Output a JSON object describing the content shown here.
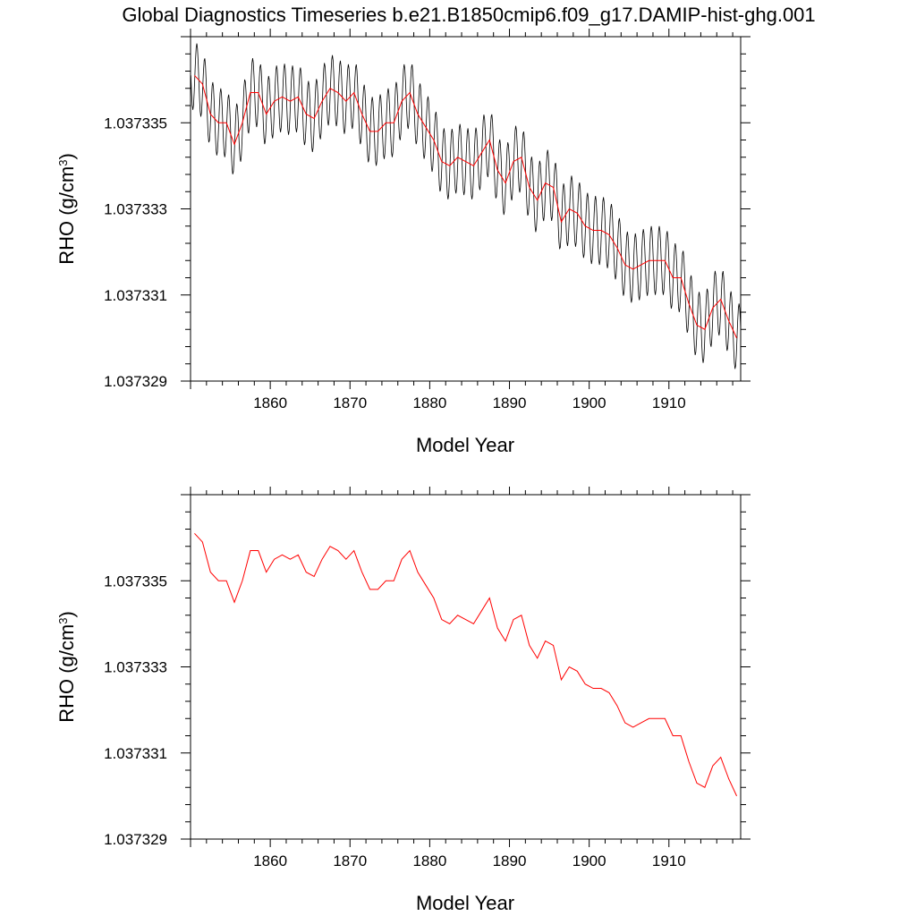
{
  "page": {
    "title": "Global Diagnostics Timeseries b.e21.B1850cmip6.f09_g17.DAMIP-hist-ghg.001"
  },
  "chart_data": [
    {
      "type": "line",
      "xlabel": "Model Year",
      "ylabel": "RHO (g/cm",
      "ylabel_sup": "3",
      "ylabel_close": ")",
      "xlim": [
        1850,
        1919
      ],
      "ylim": [
        1.037329,
        1.037337
      ],
      "xticks": [
        1860,
        1870,
        1880,
        1890,
        1900,
        1910
      ],
      "xtick_labels": [
        "1860",
        "1870",
        "1880",
        "1890",
        "1900",
        "1910"
      ],
      "yticks": [
        1.037329,
        1.037331,
        1.037333,
        1.037335
      ],
      "ytick_labels": [
        "1.037329",
        "1.037331",
        "1.037333",
        "1.037335"
      ],
      "grid": false,
      "series": [
        {
          "kind": "monthly",
          "color": "#000000",
          "months_per_year": 12,
          "annual_amplitude": 8e-07,
          "start_year": 1850,
          "end_year": 1919
        },
        {
          "kind": "annual",
          "color": "#ff0000",
          "x": [
            1850.5,
            1851.5,
            1852.5,
            1853.5,
            1854.5,
            1855.5,
            1856.5,
            1857.5,
            1858.5,
            1859.5,
            1860.5,
            1861.5,
            1862.5,
            1863.5,
            1864.5,
            1865.5,
            1866.5,
            1867.5,
            1868.5,
            1869.5,
            1870.5,
            1871.5,
            1872.5,
            1873.5,
            1874.5,
            1875.5,
            1876.5,
            1877.5,
            1878.5,
            1879.5,
            1880.5,
            1881.5,
            1882.5,
            1883.5,
            1884.5,
            1885.5,
            1886.5,
            1887.5,
            1888.5,
            1889.5,
            1890.5,
            1891.5,
            1892.5,
            1893.5,
            1894.5,
            1895.5,
            1896.5,
            1897.5,
            1898.5,
            1899.5,
            1900.5,
            1901.5,
            1902.5,
            1903.5,
            1904.5,
            1905.5,
            1906.5,
            1907.5,
            1908.5,
            1909.5,
            1910.5,
            1911.5,
            1912.5,
            1913.5,
            1914.5,
            1915.5,
            1916.5,
            1917.5,
            1918.5
          ],
          "values": [
            1.0373361,
            1.0373359,
            1.0373352,
            1.037335,
            1.037335,
            1.0373345,
            1.037335,
            1.0373357,
            1.0373357,
            1.0373352,
            1.0373355,
            1.0373356,
            1.0373355,
            1.0373356,
            1.0373352,
            1.0373351,
            1.0373355,
            1.0373358,
            1.0373357,
            1.0373355,
            1.0373357,
            1.0373352,
            1.0373348,
            1.0373348,
            1.037335,
            1.037335,
            1.0373355,
            1.0373357,
            1.0373352,
            1.0373349,
            1.0373346,
            1.0373341,
            1.037334,
            1.0373342,
            1.0373341,
            1.037334,
            1.0373343,
            1.0373346,
            1.0373339,
            1.0373336,
            1.0373341,
            1.0373342,
            1.0373335,
            1.0373332,
            1.0373336,
            1.0373335,
            1.0373327,
            1.037333,
            1.0373329,
            1.0373326,
            1.0373325,
            1.0373325,
            1.0373324,
            1.0373321,
            1.0373317,
            1.0373316,
            1.0373317,
            1.0373318,
            1.0373318,
            1.0373318,
            1.0373314,
            1.0373314,
            1.0373308,
            1.0373303,
            1.0373302,
            1.0373307,
            1.0373309,
            1.0373304,
            1.03733
          ]
        }
      ]
    },
    {
      "type": "line",
      "xlabel": "Model Year",
      "ylabel": "RHO (g/cm",
      "ylabel_sup": "3",
      "ylabel_close": ")",
      "xlim": [
        1850,
        1919
      ],
      "ylim": [
        1.037329,
        1.037337
      ],
      "xticks": [
        1860,
        1870,
        1880,
        1890,
        1900,
        1910
      ],
      "xtick_labels": [
        "1860",
        "1870",
        "1880",
        "1890",
        "1900",
        "1910"
      ],
      "yticks": [
        1.037329,
        1.037331,
        1.037333,
        1.037335
      ],
      "ytick_labels": [
        "1.037329",
        "1.037331",
        "1.037333",
        "1.037335"
      ],
      "grid": false,
      "series": [
        {
          "kind": "annual",
          "color": "#ff0000",
          "x": [
            1850.5,
            1851.5,
            1852.5,
            1853.5,
            1854.5,
            1855.5,
            1856.5,
            1857.5,
            1858.5,
            1859.5,
            1860.5,
            1861.5,
            1862.5,
            1863.5,
            1864.5,
            1865.5,
            1866.5,
            1867.5,
            1868.5,
            1869.5,
            1870.5,
            1871.5,
            1872.5,
            1873.5,
            1874.5,
            1875.5,
            1876.5,
            1877.5,
            1878.5,
            1879.5,
            1880.5,
            1881.5,
            1882.5,
            1883.5,
            1884.5,
            1885.5,
            1886.5,
            1887.5,
            1888.5,
            1889.5,
            1890.5,
            1891.5,
            1892.5,
            1893.5,
            1894.5,
            1895.5,
            1896.5,
            1897.5,
            1898.5,
            1899.5,
            1900.5,
            1901.5,
            1902.5,
            1903.5,
            1904.5,
            1905.5,
            1906.5,
            1907.5,
            1908.5,
            1909.5,
            1910.5,
            1911.5,
            1912.5,
            1913.5,
            1914.5,
            1915.5,
            1916.5,
            1917.5,
            1918.5
          ],
          "values": [
            1.0373361,
            1.0373359,
            1.0373352,
            1.037335,
            1.037335,
            1.0373345,
            1.037335,
            1.0373357,
            1.0373357,
            1.0373352,
            1.0373355,
            1.0373356,
            1.0373355,
            1.0373356,
            1.0373352,
            1.0373351,
            1.0373355,
            1.0373358,
            1.0373357,
            1.0373355,
            1.0373357,
            1.0373352,
            1.0373348,
            1.0373348,
            1.037335,
            1.037335,
            1.0373355,
            1.0373357,
            1.0373352,
            1.0373349,
            1.0373346,
            1.0373341,
            1.037334,
            1.0373342,
            1.0373341,
            1.037334,
            1.0373343,
            1.0373346,
            1.0373339,
            1.0373336,
            1.0373341,
            1.0373342,
            1.0373335,
            1.0373332,
            1.0373336,
            1.0373335,
            1.0373327,
            1.037333,
            1.0373329,
            1.0373326,
            1.0373325,
            1.0373325,
            1.0373324,
            1.0373321,
            1.0373317,
            1.0373316,
            1.0373317,
            1.0373318,
            1.0373318,
            1.0373318,
            1.0373314,
            1.0373314,
            1.0373308,
            1.0373303,
            1.0373302,
            1.0373307,
            1.0373309,
            1.0373304,
            1.03733
          ]
        }
      ]
    }
  ]
}
